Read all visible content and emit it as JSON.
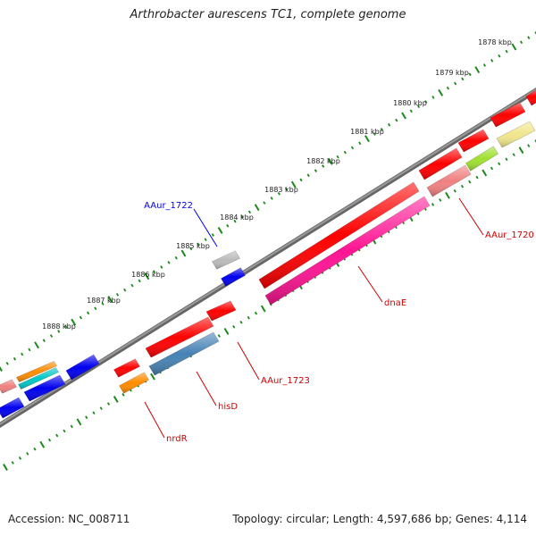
{
  "title": "Arthrobacter aurescens TC1, complete genome",
  "footer": {
    "accession": "Accession: NC_008711",
    "topology": "Topology: circular; Length: 4,597,686 bp; Genes: 4,114"
  },
  "ticks": [
    "1878 kbp",
    "1879 kbp",
    "1880 kbp",
    "1881 kbp",
    "1882 kbp",
    "1883 kbp",
    "1884 kbp",
    "1885 kbp",
    "1886 kbp",
    "1887 kbp",
    "1888 kbp"
  ],
  "gene_labels": [
    {
      "text": "AAur_1722",
      "color": "#0000ee"
    },
    {
      "text": "AAur_1720",
      "color": "#cc0000"
    },
    {
      "text": "dnaE",
      "color": "#cc0000"
    },
    {
      "text": "AAur_1723",
      "color": "#cc0000"
    },
    {
      "text": "hisD",
      "color": "#cc0000"
    },
    {
      "text": "nrdR",
      "color": "#cc0000"
    }
  ],
  "colors": {
    "backbone": "#808080",
    "tick_dots": "#1a8a1a",
    "red": "#ff0000",
    "blue": "#0000ee",
    "magenta": "#ff1493",
    "steelblue": "#4682b4",
    "orange": "#ff8c00",
    "pink": "#f08080",
    "grey": "#bbbbbb",
    "khaki": "#f0e68c",
    "lime": "#a0e030",
    "cyan": "#00c8c8"
  }
}
